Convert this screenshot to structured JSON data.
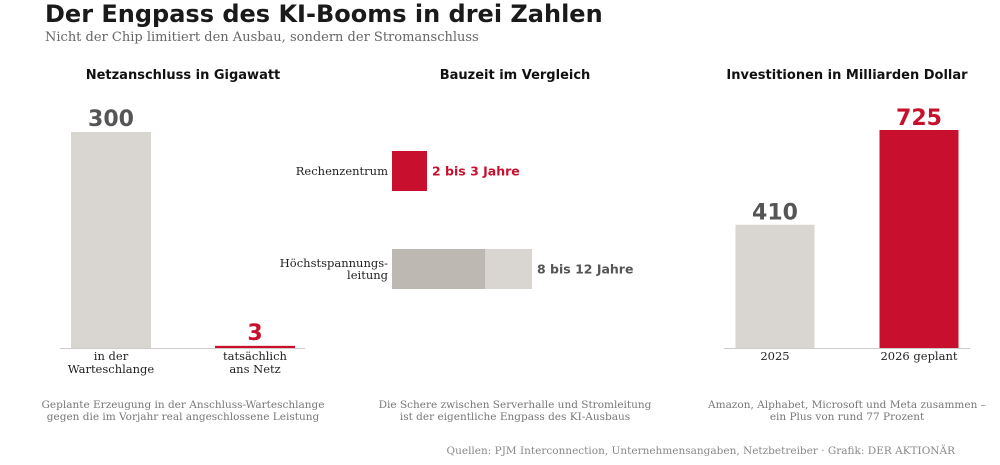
{
  "header": {
    "title": "Der Engpass des KI-Booms in drei Zahlen",
    "subtitle": "Nicht der Chip limitiert den Ausbau, sondern der Stromanschluss"
  },
  "source": "Quellen: PJM Interconnection, Unternehmensangaben, Netzbetreiber · Grafik: DER AKTIONÄR",
  "colors": {
    "accent": "#c8102e",
    "neutral": "#d9d6d2",
    "neutral_dark": "#bdb9b2",
    "value_grey": "#555555"
  },
  "chart_data": [
    {
      "type": "bar",
      "title": "Netzanschluss in Gigawatt",
      "categories": [
        [
          "in der",
          "Warteschlange"
        ],
        [
          "tatsächlich",
          "ans Netz"
        ]
      ],
      "values": [
        300,
        3
      ],
      "value_labels": [
        "300",
        "3"
      ],
      "ylim": [
        0,
        300
      ],
      "caption": [
        "Geplante Erzeugung in der Anschluss-Warteschlange",
        "gegen die im Vorjahr real angeschlossene Leistung"
      ]
    },
    {
      "type": "bar",
      "orientation": "horizontal",
      "title": "Bauzeit im Vergleich",
      "categories": [
        [
          "Rechenzentrum"
        ],
        [
          "Höchstspannungs-",
          "leitung"
        ]
      ],
      "ranges": [
        [
          2,
          3
        ],
        [
          8,
          12
        ]
      ],
      "value_labels": [
        "2 bis 3 Jahre",
        "8 bis 12 Jahre"
      ],
      "xlim": [
        0,
        12
      ],
      "caption": [
        "Die Schere zwischen Serverhalle und Stromleitung",
        "ist der eigentliche Engpass des KI-Ausbaus"
      ]
    },
    {
      "type": "bar",
      "title": "Investitionen in Milliarden Dollar",
      "categories": [
        [
          "2025"
        ],
        [
          "2026 geplant"
        ]
      ],
      "values": [
        410,
        725
      ],
      "value_labels": [
        "410",
        "725"
      ],
      "ylim": [
        0,
        725
      ],
      "caption": [
        "Amazon, Alphabet, Microsoft und Meta zusammen –",
        "ein Plus von rund 77 Prozent"
      ]
    }
  ]
}
